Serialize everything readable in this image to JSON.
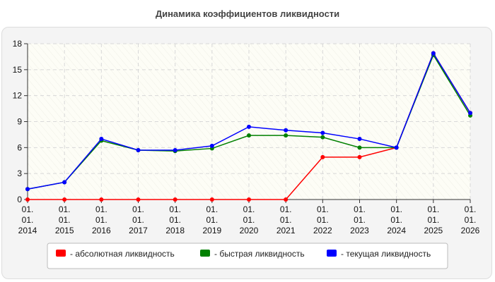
{
  "chart_data": {
    "type": "line",
    "title": "Динамика коэффициентов ликвидности",
    "x": [
      [
        "01.",
        "01.",
        "2014"
      ],
      [
        "01.",
        "01.",
        "2015"
      ],
      [
        "01.",
        "01.",
        "2016"
      ],
      [
        "01.",
        "01.",
        "2017"
      ],
      [
        "01.",
        "01.",
        "2018"
      ],
      [
        "01.",
        "01.",
        "2019"
      ],
      [
        "01.",
        "01.",
        "2020"
      ],
      [
        "01.",
        "01.",
        "2021"
      ],
      [
        "01.",
        "01.",
        "2022"
      ],
      [
        "01.",
        "01.",
        "2023"
      ],
      [
        "01.",
        "01.",
        "2024"
      ],
      [
        "01.",
        "01.",
        "2025"
      ],
      [
        "01.",
        "01.",
        "2026"
      ]
    ],
    "ylim": [
      0,
      18
    ],
    "yticks": [
      0,
      3,
      6,
      9,
      12,
      15,
      18
    ],
    "grid": true,
    "legend_position": "bottom",
    "series": [
      {
        "name": "- абсолютная ликвидность",
        "color": "#ff0000",
        "values": [
          0,
          0,
          0,
          0,
          0,
          0,
          0,
          0,
          4.9,
          4.9,
          6.0,
          16.9,
          10.0
        ]
      },
      {
        "name": "- быстрая ликвидность",
        "color": "#008000",
        "values": [
          1.2,
          2.0,
          6.8,
          5.7,
          5.6,
          5.9,
          7.4,
          7.4,
          7.2,
          6.0,
          6.0,
          16.7,
          9.7
        ]
      },
      {
        "name": "- текущая ликвидность",
        "color": "#0000ff",
        "values": [
          1.2,
          2.0,
          7.0,
          5.7,
          5.7,
          6.2,
          8.4,
          8.0,
          7.7,
          7.0,
          6.0,
          16.9,
          10.0
        ]
      }
    ]
  }
}
